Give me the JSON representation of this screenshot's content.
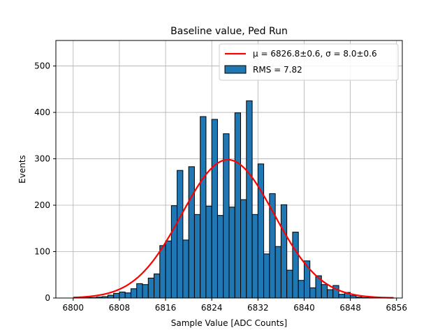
{
  "chart_data": {
    "type": "bar",
    "title": "Baseline value, Ped Run",
    "xlabel": "Sample Value [ADC Counts]",
    "ylabel": "Events",
    "xlim": [
      6797,
      6857
    ],
    "ylim": [
      0,
      555
    ],
    "xticks": [
      6800,
      6808,
      6816,
      6824,
      6832,
      6840,
      6848,
      6856
    ],
    "yticks": [
      0,
      100,
      200,
      300,
      400,
      500
    ],
    "grid": true,
    "legend_position": "top-right",
    "histogram": {
      "name": "RMS = 7.82",
      "bin_width": 1,
      "bin_starts": [
        6800,
        6801,
        6802,
        6803,
        6804,
        6805,
        6806,
        6807,
        6808,
        6809,
        6810,
        6811,
        6812,
        6813,
        6814,
        6815,
        6816,
        6817,
        6818,
        6819,
        6820,
        6821,
        6822,
        6823,
        6824,
        6825,
        6826,
        6827,
        6828,
        6829,
        6830,
        6831,
        6832,
        6833,
        6834,
        6835,
        6836,
        6837,
        6838,
        6839,
        6840,
        6841,
        6842,
        6843,
        6844,
        6845,
        6846,
        6847,
        6848,
        6849,
        6850,
        6851,
        6852,
        6853,
        6854,
        6855
      ],
      "counts": [
        0,
        1,
        1,
        1,
        2,
        3,
        6,
        10,
        13,
        11,
        20,
        31,
        29,
        43,
        52,
        113,
        123,
        199,
        275,
        125,
        283,
        180,
        391,
        198,
        385,
        178,
        354,
        196,
        399,
        212,
        425,
        180,
        289,
        95,
        225,
        111,
        201,
        60,
        142,
        38,
        80,
        22,
        48,
        29,
        18,
        27,
        8,
        12,
        5,
        2,
        1,
        1,
        0,
        0,
        0,
        0
      ],
      "color": "#1f77b4"
    },
    "fit": {
      "name_prefix": "μ",
      "mu": 6826.8,
      "mu_err": 0.6,
      "sigma": 8.0,
      "sigma_err": 0.6,
      "amplitude": 298,
      "color": "#ff0000"
    },
    "legend": {
      "fit_label": "μ = 6826.8±0.6, σ = 8.0±0.6",
      "hist_label": "RMS = 7.82"
    }
  }
}
